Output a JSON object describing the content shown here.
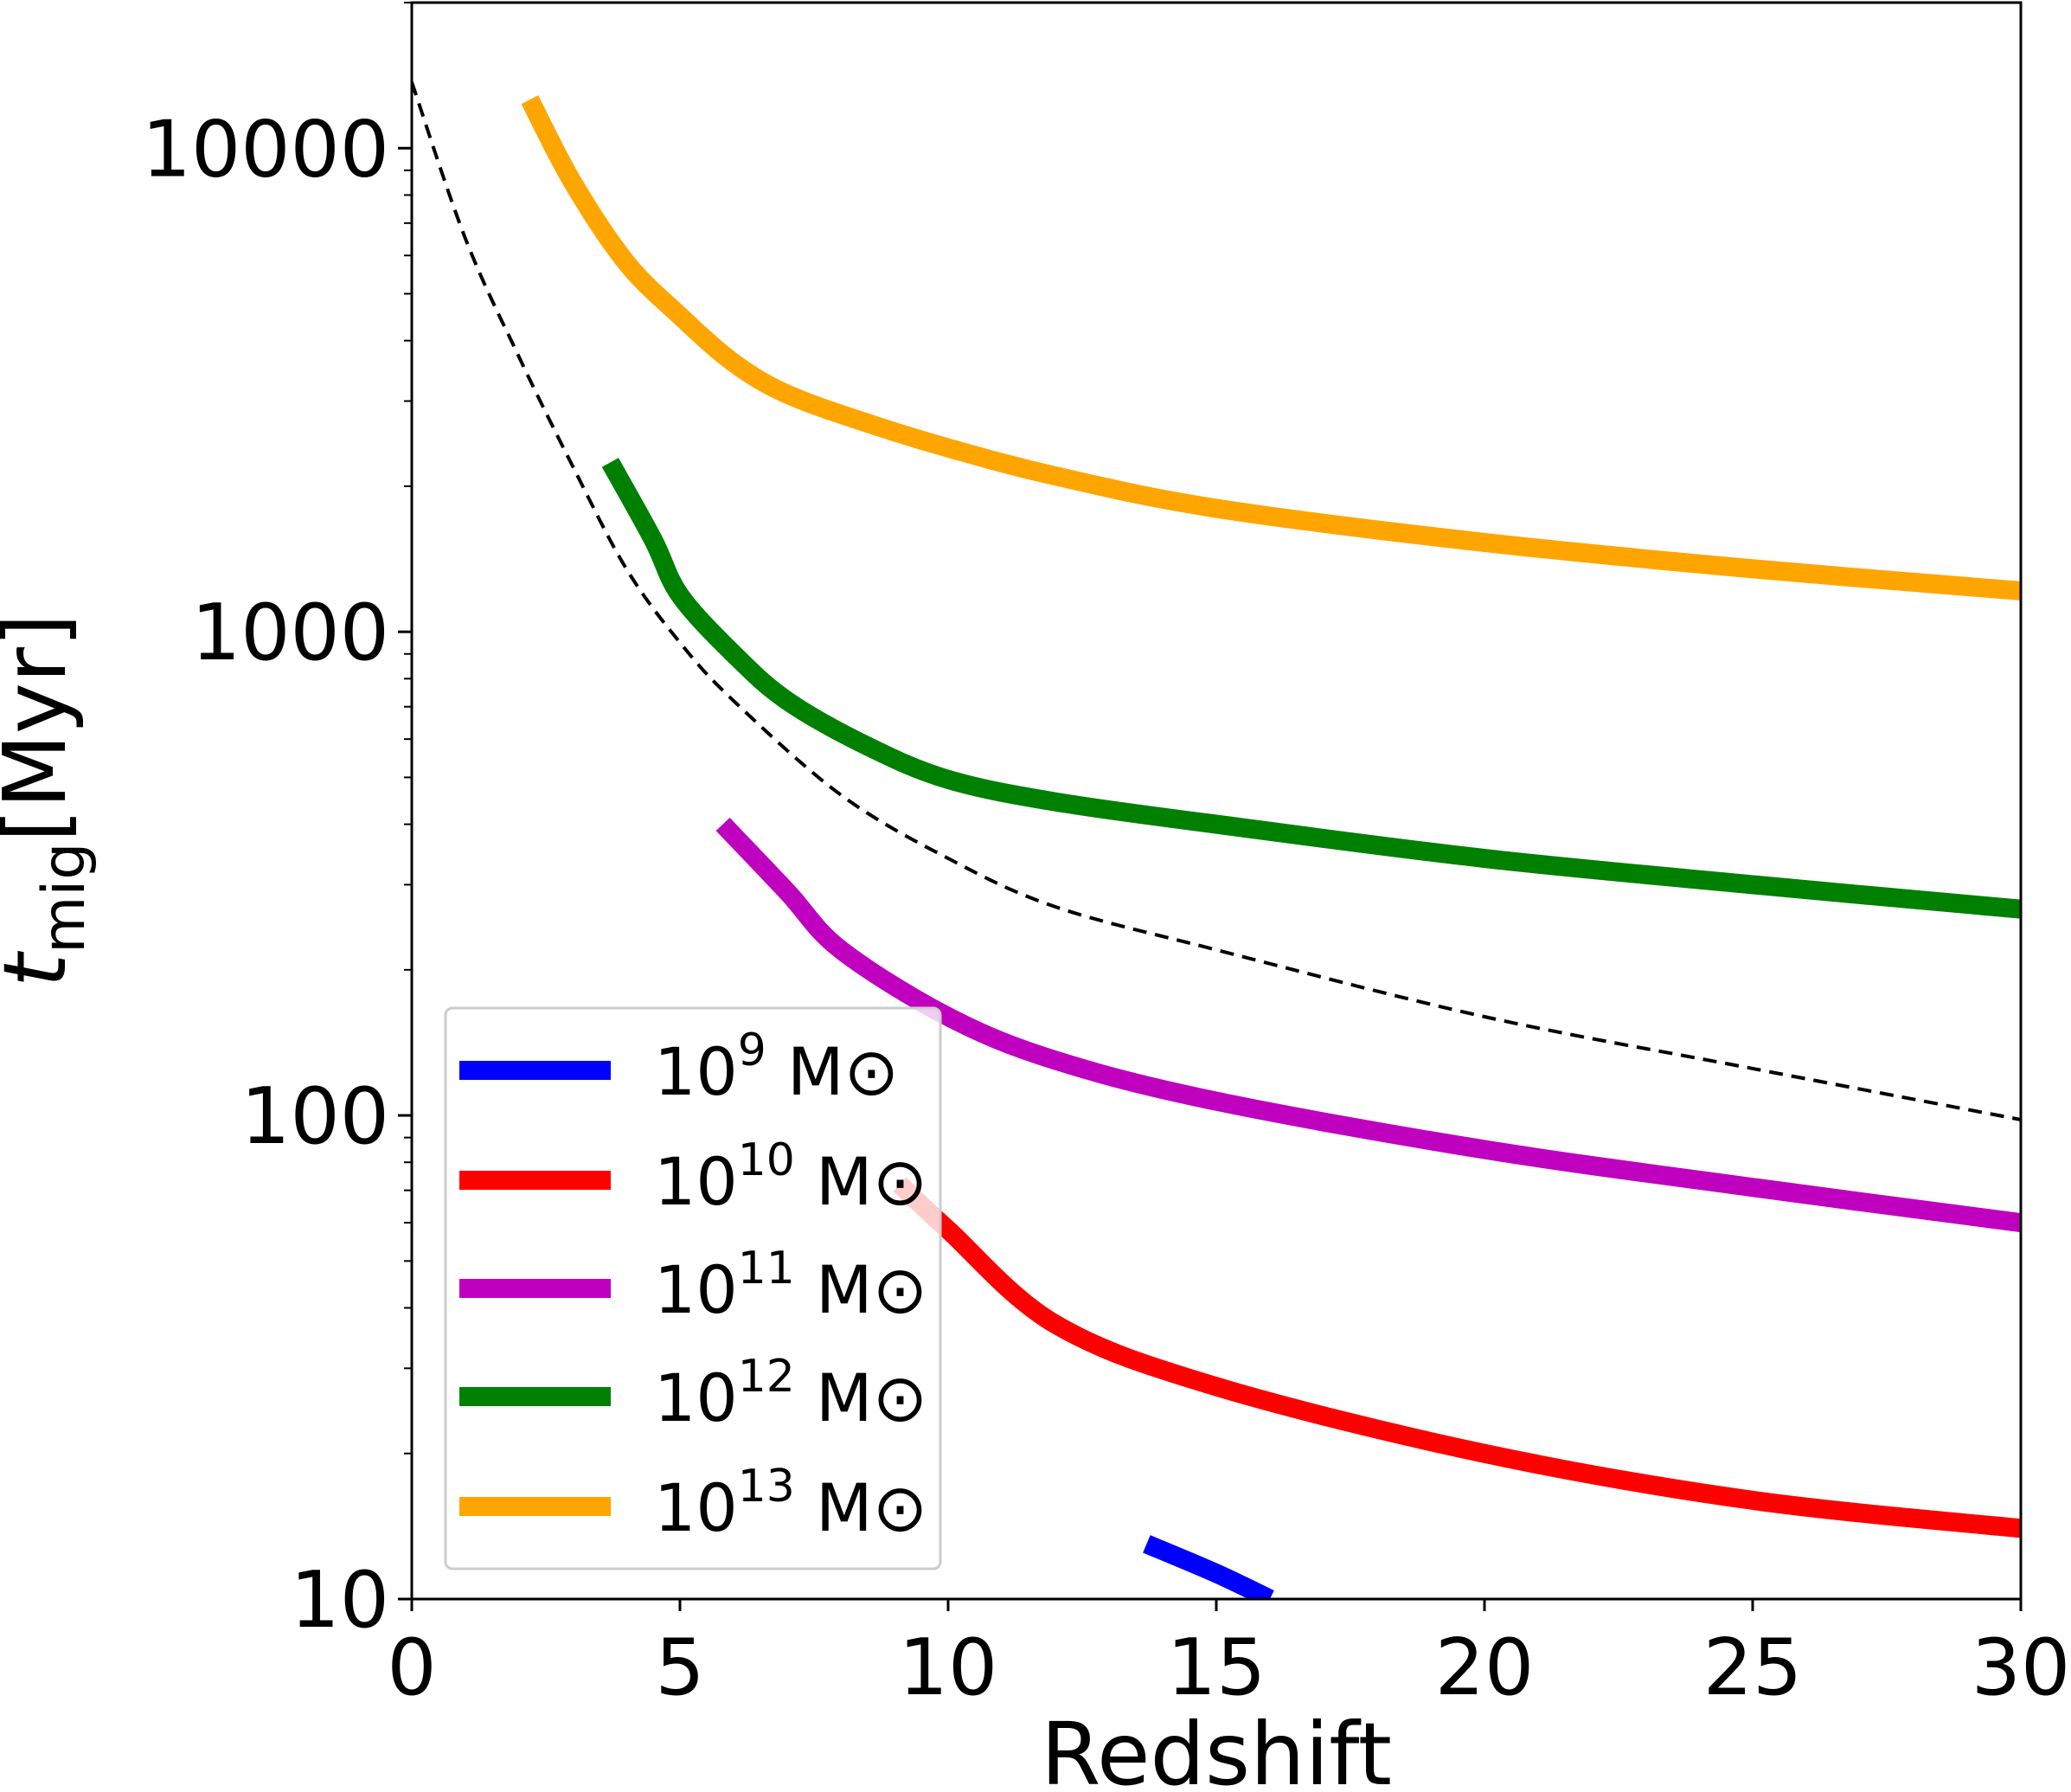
{
  "chart_data": {
    "type": "line",
    "xlabel": "Redshift",
    "ylabel": {
      "main": "t",
      "sub": "mig",
      "unit": "[Myr]"
    },
    "xlim": [
      0,
      30
    ],
    "ylim": [
      10,
      20000
    ],
    "yscale": "log",
    "grid": false,
    "legend_placement": "lower-left",
    "x_ticks": [
      0,
      5,
      10,
      15,
      20,
      25,
      30
    ],
    "x_tick_labels": [
      "0",
      "5",
      "10",
      "15",
      "20",
      "25",
      "30"
    ],
    "y_ticks": [
      10,
      100,
      1000,
      10000
    ],
    "y_tick_labels": [
      "10",
      "100",
      "1000",
      "10000"
    ],
    "series": [
      {
        "name": "10^9 M⊙",
        "label": {
          "base": "10",
          "exp": "9",
          "unit": "M⊙"
        },
        "color": "#0000ff",
        "x": [
          13.7,
          15,
          16
        ],
        "y": [
          13,
          11.3,
          10
        ]
      },
      {
        "name": "10^10 M⊙",
        "label": {
          "base": "10",
          "exp": "10",
          "unit": "M⊙"
        },
        "color": "#ff0000",
        "x": [
          9.1,
          10,
          12,
          15,
          20,
          25,
          30
        ],
        "y": [
          72,
          58,
          37,
          27.5,
          20,
          16,
          14
        ]
      },
      {
        "name": "10^11 M⊙",
        "label": {
          "base": "10",
          "exp": "11",
          "unit": "M⊙"
        },
        "color": "#bf00bf",
        "x": [
          5.8,
          7,
          8,
          10,
          12,
          15,
          20,
          25,
          30
        ],
        "y": [
          400,
          290,
          220,
          160,
          130,
          107,
          85,
          71,
          60
        ]
      },
      {
        "name": "10^12 M⊙",
        "label": {
          "base": "10",
          "exp": "12",
          "unit": "M⊙"
        },
        "color": "#008000",
        "x": [
          3.7,
          4.5,
          5,
          6,
          7,
          8.5,
          10,
          12,
          15,
          20,
          25,
          30
        ],
        "y": [
          2240,
          1550,
          1190,
          900,
          720,
          580,
          495,
          445,
          400,
          340,
          300,
          267
        ]
      },
      {
        "name": "10^13 M⊙",
        "label": {
          "base": "10",
          "exp": "13",
          "unit": "M⊙"
        },
        "color": "#ffa500",
        "x": [
          2.2,
          3,
          4,
          5,
          6,
          7,
          8.5,
          10,
          12,
          15,
          20,
          25,
          30
        ],
        "y": [
          12600,
          8500,
          5800,
          4500,
          3600,
          3100,
          2700,
          2400,
          2100,
          1800,
          1530,
          1350,
          1215
        ]
      }
    ],
    "reference_line": {
      "style": "dashed",
      "color": "#000000",
      "x": [
        0,
        1,
        2,
        3,
        4,
        5,
        6,
        8,
        10,
        12,
        15,
        20,
        25,
        30
      ],
      "y": [
        13700,
        6500,
        3700,
        2200,
        1350,
        950,
        720,
        460,
        340,
        270,
        220,
        160,
        125,
        98
      ]
    }
  }
}
